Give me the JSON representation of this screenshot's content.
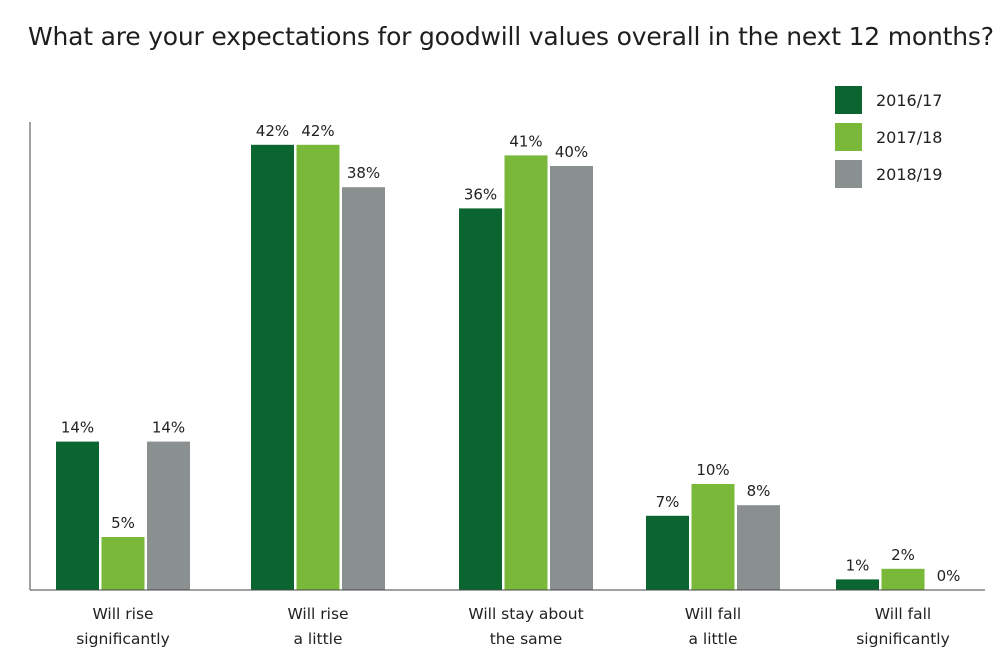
{
  "chart_data": {
    "type": "bar",
    "title": "What are your expectations for goodwill values overall in the next 12 months?",
    "categories": [
      [
        "Will rise",
        "significantly"
      ],
      [
        "Will rise",
        "a little"
      ],
      [
        "Will stay about",
        "the same"
      ],
      [
        "Will fall",
        "a little"
      ],
      [
        "Will fall",
        "significantly"
      ]
    ],
    "series": [
      {
        "name": "2016/17",
        "color": "#0b6530",
        "values": [
          14,
          42,
          36,
          7,
          1
        ],
        "labels": [
          "14%",
          "42%",
          "36%",
          "7%",
          "1%"
        ]
      },
      {
        "name": "2017/18",
        "color": "#7ab83a",
        "values": [
          5,
          42,
          41,
          10,
          2
        ],
        "labels": [
          "5%",
          "42%",
          "41%",
          "10%",
          "2%"
        ]
      },
      {
        "name": "2018/19",
        "color": "#8a8f8f",
        "values": [
          14,
          38,
          40,
          8,
          0
        ],
        "labels": [
          "14%",
          "38%",
          "40%",
          "8%",
          "0%"
        ]
      }
    ],
    "ylim": [
      0,
      44
    ],
    "grid": false,
    "legend": "top-right",
    "xlabel": "",
    "ylabel": ""
  }
}
